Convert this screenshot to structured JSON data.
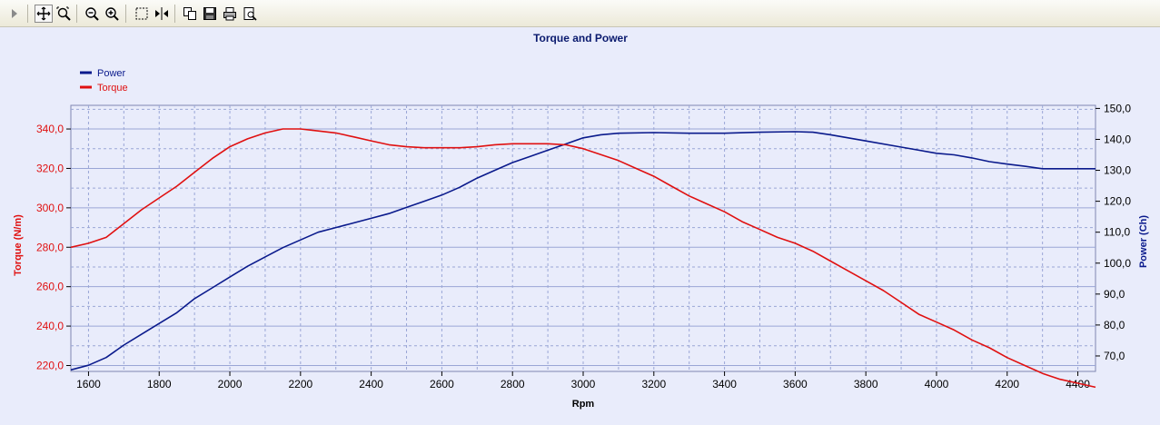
{
  "toolbar": {
    "icons": [
      "play-icon",
      "pan-icon",
      "zoom-fit-icon",
      "zoom-out-icon",
      "zoom-in-icon",
      "select-rect-icon",
      "cursor-measure-icon",
      "copy-icon",
      "save-icon",
      "print-icon",
      "print-preview-icon"
    ]
  },
  "colors": {
    "power": "#0a1a8c",
    "torque": "#e01010",
    "title": "#0a1a6e",
    "grid": "#9aa6d6",
    "background": "#e9ecfb"
  },
  "chart_data": {
    "type": "line",
    "title": "Torque and Power",
    "xlabel": "Rpm",
    "ylabel_left": "Torque (N/m)",
    "ylabel_right": "Power (Ch)",
    "xlim": [
      1550,
      4450
    ],
    "ylim_left": [
      217,
      352
    ],
    "ylim_right": [
      65,
      151
    ],
    "x_ticks": [
      "1600",
      "1800",
      "2000",
      "2200",
      "2400",
      "2600",
      "2800",
      "3000",
      "3200",
      "3400",
      "3600",
      "3800",
      "4000",
      "4200",
      "4400"
    ],
    "y_left_ticks": [
      "220,0",
      "240,0",
      "260,0",
      "280,0",
      "300,0",
      "320,0",
      "340,0"
    ],
    "y_right_ticks": [
      "70,0",
      "80,0",
      "90,0",
      "100,0",
      "110,0",
      "120,0",
      "130,0",
      "140,0",
      "150,0"
    ],
    "legend": {
      "placement": "top-left"
    },
    "grid": true,
    "series": [
      {
        "name": "Power",
        "axis": "right",
        "x": [
          1550,
          1600,
          1650,
          1700,
          1750,
          1800,
          1850,
          1900,
          1950,
          2000,
          2050,
          2100,
          2150,
          2200,
          2250,
          2300,
          2350,
          2400,
          2450,
          2500,
          2550,
          2600,
          2650,
          2700,
          2750,
          2800,
          2850,
          2900,
          2950,
          3000,
          3050,
          3100,
          3200,
          3300,
          3400,
          3500,
          3600,
          3650,
          3700,
          3800,
          3900,
          4000,
          4050,
          4100,
          4150,
          4200,
          4250,
          4300,
          4350,
          4400,
          4450
        ],
        "values": [
          65.5,
          67,
          69.5,
          73.5,
          77,
          80.5,
          84,
          88.5,
          92,
          95.5,
          99,
          102,
          105,
          107.5,
          110,
          111.5,
          113,
          114.5,
          116,
          118,
          120,
          122,
          124.5,
          127.5,
          130,
          132.5,
          134.5,
          136.5,
          138.5,
          140.5,
          141.5,
          142,
          142.2,
          142,
          142,
          142.3,
          142.5,
          142.3,
          141.5,
          139.5,
          137.5,
          135.5,
          135,
          134,
          132.8,
          132,
          131.3,
          130.5,
          130.5,
          130.5,
          130.5
        ]
      },
      {
        "name": "Torque",
        "axis": "left",
        "x": [
          1550,
          1600,
          1650,
          1700,
          1750,
          1800,
          1850,
          1900,
          1950,
          2000,
          2050,
          2100,
          2150,
          2200,
          2250,
          2300,
          2350,
          2400,
          2450,
          2500,
          2550,
          2600,
          2650,
          2700,
          2750,
          2800,
          2850,
          2900,
          2950,
          3000,
          3050,
          3100,
          3150,
          3200,
          3250,
          3300,
          3350,
          3400,
          3450,
          3500,
          3550,
          3600,
          3650,
          3700,
          3750,
          3800,
          3850,
          3900,
          3950,
          4000,
          4050,
          4100,
          4150,
          4200,
          4250,
          4300,
          4350,
          4400,
          4450
        ],
        "values": [
          280,
          282,
          285,
          292,
          299,
          305,
          311,
          318,
          325,
          331,
          335,
          338,
          340,
          340,
          339,
          338,
          336,
          334,
          332,
          331,
          330.5,
          330.5,
          330.5,
          331,
          332,
          332.5,
          332.5,
          332.5,
          332,
          330,
          327,
          324,
          320,
          316,
          311,
          306,
          302,
          298,
          293,
          289,
          285,
          282,
          278,
          273,
          268,
          263,
          258,
          252,
          246,
          242,
          238,
          233,
          229,
          224,
          220,
          216,
          213,
          211,
          209
        ]
      }
    ]
  }
}
